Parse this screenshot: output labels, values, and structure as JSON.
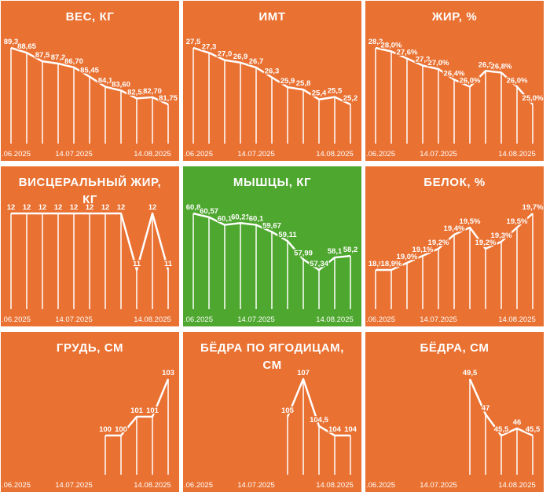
{
  "chart_data": [
    {
      "type": "line",
      "title": "ВЕС, КГ",
      "background": "#e97132",
      "color": "#ffffff",
      "categories": [
        ".06.2025",
        null,
        null,
        null,
        "14.07.2025",
        null,
        null,
        null,
        null,
        "14.08.2025",
        null
      ],
      "values": [
        89.3,
        88.65,
        87.5,
        87.2,
        86.7,
        85.45,
        84.1,
        83.6,
        82.55,
        82.7,
        81.75
      ],
      "value_labels": [
        "89,3",
        "88,65",
        "87,5",
        "87,2",
        "86,70",
        "85,45",
        "84,1",
        "83,60",
        "82,55",
        "82,70",
        "81,75"
      ]
    },
    {
      "type": "line",
      "title": "ИМТ",
      "background": "#e97132",
      "color": "#ffffff",
      "categories": [
        ".06.2025",
        null,
        null,
        null,
        "14.07.2025",
        null,
        null,
        null,
        null,
        "14.08.2025",
        null
      ],
      "values": [
        27.5,
        27.3,
        27.0,
        26.9,
        26.7,
        26.3,
        25.9,
        25.8,
        25.4,
        25.5,
        25.2
      ],
      "value_labels": [
        "27,5",
        "27,3",
        "27,0",
        "26,9",
        "26,7",
        "26,3",
        "25,9",
        "25,8",
        "25,4",
        "25,5",
        "25,2"
      ]
    },
    {
      "type": "line",
      "title": "ЖИР, %",
      "background": "#e97132",
      "color": "#ffffff",
      "categories": [
        ".06.2025",
        null,
        null,
        null,
        "14.07.2025",
        null,
        null,
        null,
        null,
        "14.08.2025",
        null
      ],
      "values": [
        28.2,
        28.0,
        27.6,
        27.2,
        27.0,
        26.4,
        26.0,
        26.9,
        26.8,
        26.0,
        25.0
      ],
      "value_labels": [
        "28,2",
        "28,0%",
        "27,6%",
        "27,2",
        "27,0%",
        "26,4%",
        "26,0%",
        "26,9",
        "26,8%",
        "26,0%",
        "25,0%"
      ]
    },
    {
      "type": "line",
      "title": "ВИСЦЕРАЛЬНЫЙ ЖИР, КГ",
      "background": "#e97132",
      "color": "#ffffff",
      "categories": [
        ".06.2025",
        null,
        null,
        null,
        "14.07.2025",
        null,
        null,
        null,
        null,
        "14.08.2025",
        null
      ],
      "values": [
        12,
        12,
        12,
        12,
        12,
        12,
        12,
        12,
        11,
        12,
        11
      ]
    },
    {
      "type": "line",
      "title": "МЫШЦЫ, КГ",
      "background": "#4ea72e",
      "color": "#ffffff",
      "categories": [
        ".06.2025",
        null,
        null,
        null,
        "14.07.2025",
        null,
        null,
        null,
        null,
        "14.08.2025",
        null
      ],
      "values": [
        60.8,
        60.57,
        60.1,
        60.21,
        60.1,
        59.67,
        59.11,
        57.99,
        57.34,
        58.1,
        58.2
      ],
      "value_labels": [
        "60,8",
        "60,57",
        "60,1",
        "60,21",
        "60,1",
        "59,67",
        "59,11",
        "57,99",
        "57,34",
        "58,1",
        "58,2"
      ]
    },
    {
      "type": "line",
      "title": "БЕЛОК, %",
      "background": "#e97132",
      "color": "#ffffff",
      "categories": [
        ".06.2025",
        null,
        null,
        null,
        "14.07.2025",
        null,
        null,
        null,
        null,
        "14.08.2025",
        null
      ],
      "values": [
        18.9,
        18.9,
        19.0,
        19.1,
        19.2,
        19.4,
        19.5,
        19.2,
        19.3,
        19.5,
        19.7
      ],
      "value_labels": [
        "18,9",
        "18,9%",
        "19,0%",
        "19,1%",
        "19,2%",
        "19,4%",
        "19,5%",
        "19,2%",
        "19,3%",
        "19,5%",
        "19,7%"
      ]
    },
    {
      "type": "line",
      "title": "ГРУДЬ, СМ",
      "background": "#e97132",
      "color": "#ffffff",
      "categories": [
        ".06.2025",
        null,
        null,
        null,
        "14.07.2025",
        null,
        null,
        null,
        null,
        "14.08.2025",
        null
      ],
      "values": [
        null,
        null,
        null,
        null,
        null,
        null,
        100,
        100,
        101,
        101,
        103
      ]
    },
    {
      "type": "line",
      "title": "БЁДРА ПО ЯГОДИЦАМ, СМ",
      "background": "#e97132",
      "color": "#ffffff",
      "categories": [
        ".06.2025",
        null,
        null,
        null,
        "14.07.2025",
        null,
        null,
        null,
        null,
        "14.08.2025",
        null
      ],
      "values": [
        null,
        null,
        null,
        null,
        null,
        null,
        105,
        107,
        104.5,
        104,
        104
      ],
      "value_labels": [
        null,
        null,
        null,
        null,
        null,
        null,
        "105",
        "107",
        "104,5",
        "104",
        "104"
      ]
    },
    {
      "type": "line",
      "title": "БЁДРА, СМ",
      "background": "#e97132",
      "color": "#ffffff",
      "categories": [
        ".06.2025",
        null,
        null,
        null,
        "14.07.2025",
        null,
        null,
        null,
        null,
        "14.08.2025",
        null
      ],
      "values": [
        null,
        null,
        null,
        null,
        null,
        null,
        49.5,
        47,
        45.5,
        46,
        45.5
      ],
      "value_labels": [
        null,
        null,
        null,
        null,
        null,
        null,
        "49,5",
        "47",
        "45,5",
        "46",
        "45,5"
      ]
    }
  ]
}
